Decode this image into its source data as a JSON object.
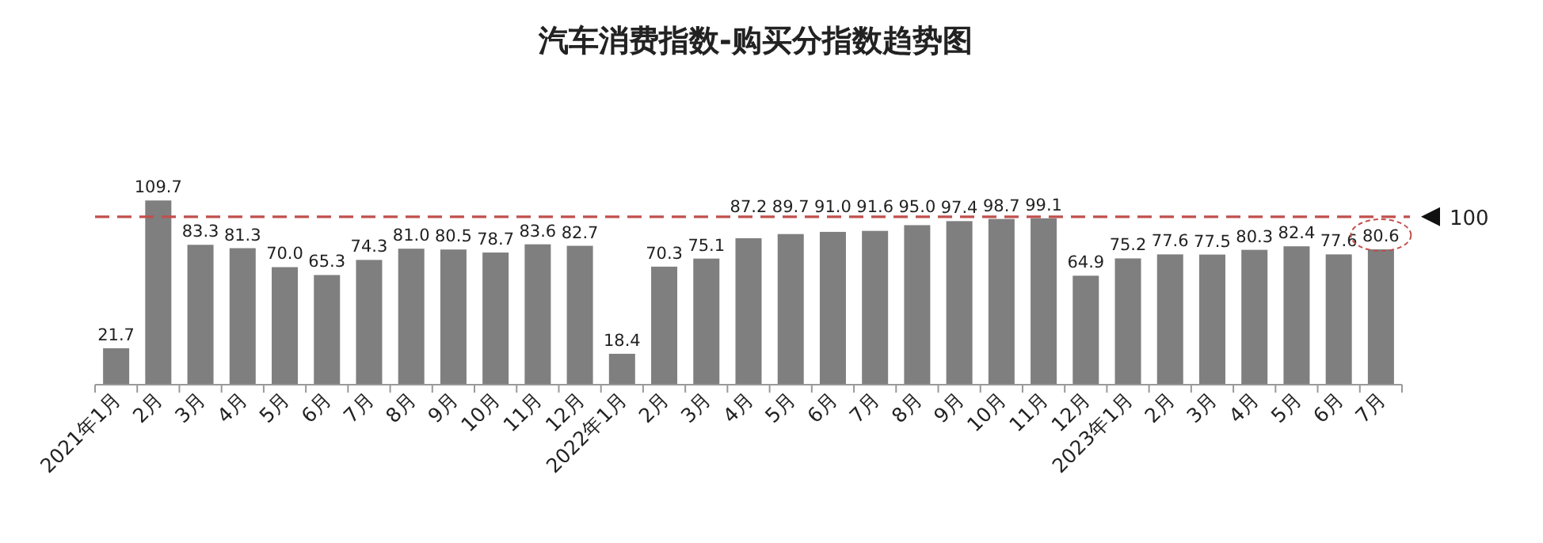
{
  "chart_data": {
    "type": "bar",
    "title": "汽车消费指数-购买分指数趋势图",
    "categories": [
      "2021年1月",
      "2月",
      "3月",
      "4月",
      "5月",
      "6月",
      "7月",
      "8月",
      "9月",
      "10月",
      "11月",
      "12月",
      "2022年1月",
      "2月",
      "3月",
      "4月",
      "5月",
      "6月",
      "7月",
      "8月",
      "9月",
      "10月",
      "11月",
      "12月",
      "2023年1月",
      "2月",
      "3月",
      "4月",
      "5月",
      "6月",
      "7月"
    ],
    "values": [
      21.7,
      109.7,
      83.3,
      81.3,
      70.0,
      65.3,
      74.3,
      81.0,
      80.5,
      78.7,
      83.6,
      82.7,
      18.4,
      70.3,
      75.1,
      87.2,
      89.7,
      91.0,
      91.6,
      95.0,
      97.4,
      98.7,
      99.1,
      64.9,
      75.2,
      77.6,
      77.5,
      80.3,
      82.4,
      77.6,
      80.6
    ],
    "value_labels": [
      "21.7",
      "109.7",
      "83.3",
      "81.3",
      "70.0",
      "65.3",
      "74.3",
      "81.0",
      "80.5",
      "78.7",
      "83.6",
      "82.7",
      "18.4",
      "70.3",
      "75.1",
      "87.2",
      "89.7",
      "91.0",
      "91.6",
      "95.0",
      "97.4",
      "98.7",
      "99.1",
      "64.9",
      "75.2",
      "77.6",
      "77.5",
      "80.3",
      "82.4",
      "77.6",
      "80.6"
    ],
    "color": "#7f7f7f",
    "tick_labels": "x",
    "ref_lines": [
      {
        "axis": "y",
        "value": 100,
        "label": "100",
        "color": "#c0504d",
        "line_style": "dashed"
      }
    ]
  }
}
